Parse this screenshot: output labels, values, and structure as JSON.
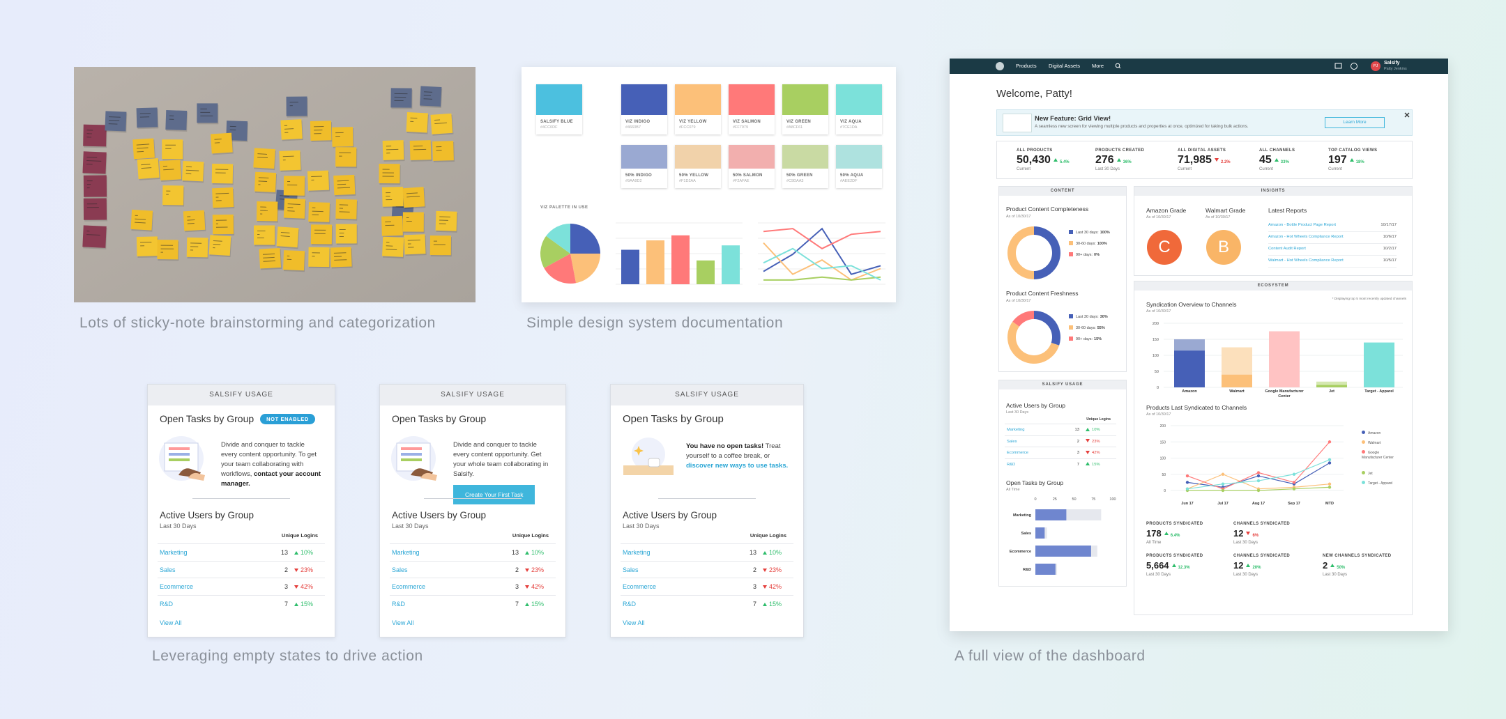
{
  "captions": [
    "Lots of sticky-note brainstorming and categorization",
    "Simple design system documentation",
    "Leveraging empty states to drive action",
    "A full view of the dashboard"
  ],
  "design_system": {
    "primary": [
      {
        "name": "SALSIFY BLUE",
        "hex": "#4CC0DF"
      }
    ],
    "palette": [
      {
        "name": "VIZ INDIGO",
        "hex": "#4660B7"
      },
      {
        "name": "VIZ YELLOW",
        "hex": "#FCC079"
      },
      {
        "name": "VIZ SALMON",
        "hex": "#FF7979"
      },
      {
        "name": "VIZ GREEN",
        "hex": "#A8CF61"
      },
      {
        "name": "VIZ AQUA",
        "hex": "#7CE1DA"
      },
      {
        "name": "50% INDIGO",
        "hex": "#9AA9D2"
      },
      {
        "name": "50% YELLOW",
        "hex": "#F1D2AA"
      },
      {
        "name": "50% SALMON",
        "hex": "#F2AFAE"
      },
      {
        "name": "50% GREEN",
        "hex": "#C9DAA3"
      },
      {
        "name": "50% AQUA",
        "hex": "#AEE2DF"
      }
    ],
    "palette_label": "VIZ PALETTE IN USE"
  },
  "empty_states": [
    {
      "header": "SALSIFY USAGE",
      "title": "Open Tasks by Group",
      "badge": "NOT ENABLED",
      "message": "Divide and conquer to tackle every content opportunity. To get your team collaborating with workflows, ",
      "message_link": "contact your account manager.",
      "users_title": "Active Users by Group",
      "users_period": "Last 30 Days",
      "users_column": "Unique Logins",
      "rows": [
        {
          "group": "Marketing",
          "logins": 13,
          "change": "10%",
          "trend": "up"
        },
        {
          "group": "Sales",
          "logins": 2,
          "change": "23%",
          "trend": "down"
        },
        {
          "group": "Ecommerce",
          "logins": 3,
          "change": "42%",
          "trend": "down"
        },
        {
          "group": "R&D",
          "logins": 7,
          "change": "15%",
          "trend": "up"
        }
      ],
      "view_all": "View All"
    },
    {
      "header": "SALSIFY USAGE",
      "title": "Open Tasks by Group",
      "message": "Divide and conquer to tackle every content opportunity. Get your whole team collaborating in Salsify.",
      "button": "Create Your First Task",
      "users_title": "Active Users by Group",
      "users_period": "Last 30 Days",
      "users_column": "Unique Logins",
      "rows": [
        {
          "group": "Marketing",
          "logins": 13,
          "change": "10%",
          "trend": "up"
        },
        {
          "group": "Sales",
          "logins": 2,
          "change": "23%",
          "trend": "down"
        },
        {
          "group": "Ecommerce",
          "logins": 3,
          "change": "42%",
          "trend": "down"
        },
        {
          "group": "R&D",
          "logins": 7,
          "change": "15%",
          "trend": "up"
        }
      ],
      "view_all": "View All"
    },
    {
      "header": "SALSIFY USAGE",
      "title": "Open Tasks by Group",
      "message_lead": "You have no open tasks!",
      "message": " Treat yourself to a coffee break, or ",
      "message_link": "discover new ways to use tasks.",
      "users_title": "Active Users by Group",
      "users_period": "Last 30 Days",
      "users_column": "Unique Logins",
      "rows": [
        {
          "group": "Marketing",
          "logins": 13,
          "change": "10%",
          "trend": "up"
        },
        {
          "group": "Sales",
          "logins": 2,
          "change": "23%",
          "trend": "down"
        },
        {
          "group": "Ecommerce",
          "logins": 3,
          "change": "42%",
          "trend": "down"
        },
        {
          "group": "R&D",
          "logins": 7,
          "change": "15%",
          "trend": "up"
        }
      ],
      "view_all": "View All"
    }
  ],
  "dashboard": {
    "nav": {
      "links": [
        "Products",
        "Digital Assets",
        "More"
      ],
      "user": "Salsify",
      "user_name": "Patty Jenkins",
      "initials": "PJ"
    },
    "welcome": "Welcome, Patty!",
    "banner": {
      "title": "New Feature: Grid View!",
      "text": "A seamless new screen for viewing multiple products and properties at once, optimized for taking bulk actions.",
      "button": "Learn More"
    },
    "stats": [
      {
        "label": "ALL PRODUCTS",
        "value": "50,430",
        "change": "5.4%",
        "trend": "up",
        "period": "Current"
      },
      {
        "label": "PRODUCTS CREATED",
        "value": "276",
        "change": "36%",
        "trend": "up",
        "period": "Last 30 Days"
      },
      {
        "label": "ALL DIGITAL ASSETS",
        "value": "71,985",
        "change": "2.2%",
        "trend": "down",
        "period": "Current"
      },
      {
        "label": "ALL CHANNELS",
        "value": "45",
        "change": "33%",
        "trend": "up",
        "period": "Current"
      },
      {
        "label": "TOP CATALOG VIEWS",
        "value": "197",
        "change": "18%",
        "trend": "up",
        "period": "Current"
      }
    ],
    "content": {
      "header": "CONTENT",
      "charts": [
        {
          "title": "Product Content Completeness",
          "date": "As of 10/30/17",
          "legend": [
            {
              "label": "Last 30 days:",
              "value": 100,
              "value_label": "100%",
              "color": "#4660B7"
            },
            {
              "label": "30-60 days:",
              "value": 100,
              "value_label": "100%",
              "color": "#FCC079"
            },
            {
              "label": "90+ days:",
              "value": 0,
              "value_label": "0%",
              "color": "#FF7979"
            }
          ]
        },
        {
          "title": "Product Content Freshness",
          "date": "As of 10/30/17",
          "legend": [
            {
              "label": "Last 30 days:",
              "value": 30,
              "value_label": "30%",
              "color": "#4660B7"
            },
            {
              "label": "30-60 days:",
              "value": 55,
              "value_label": "55%",
              "color": "#FCC079"
            },
            {
              "label": "90+ days:",
              "value": 15,
              "value_label": "15%",
              "color": "#FF7979"
            }
          ]
        }
      ]
    },
    "insights": {
      "header": "INSIGHTS",
      "grades": [
        {
          "title": "Amazon Grade",
          "date": "As of 10/30/17",
          "grade": "C",
          "color": "#F0693A"
        },
        {
          "title": "Walmart Grade",
          "date": "As of 10/30/17",
          "grade": "B",
          "color": "#F9B567"
        }
      ],
      "reports_title": "Latest Reports",
      "reports": [
        {
          "name": "Amazon - Bottle Product Page Report",
          "date": "10/17/17"
        },
        {
          "name": "Amazon - Hot Wheels Compliance Report",
          "date": "10/6/17"
        },
        {
          "name": "Content Audit Report",
          "date": "10/2/17"
        },
        {
          "name": "Walmart - Hot Wheels Compliance Report",
          "date": "10/5/17"
        }
      ]
    },
    "usage": {
      "header": "SALSIFY USAGE",
      "users_title": "Active Users by Group",
      "users_period": "Last 30 Days",
      "users_column": "Unique Logins",
      "rows": [
        {
          "group": "Marketing",
          "logins": 13,
          "change": "10%",
          "trend": "up"
        },
        {
          "group": "Sales",
          "logins": 2,
          "change": "23%",
          "trend": "down"
        },
        {
          "group": "Ecommerce",
          "logins": 3,
          "change": "42%",
          "trend": "down"
        },
        {
          "group": "R&D",
          "logins": 7,
          "change": "15%",
          "trend": "up"
        }
      ],
      "tasks_title": "Open Tasks by Group",
      "tasks_period": "All Time",
      "tasks_chart": {
        "type": "bar",
        "orientation": "horizontal",
        "categories": [
          "Marketing",
          "Sales",
          "Ecommerce",
          "R&D"
        ],
        "values": [
          40,
          12,
          72,
          26
        ],
        "totals": [
          85,
          15,
          80,
          28
        ],
        "color": "#6F86CF",
        "total_color": "#E6E8EE",
        "xlim": [
          0,
          100
        ],
        "xticks": [
          0,
          25,
          50,
          75,
          100
        ]
      }
    },
    "ecosystem": {
      "header": "ECOSYSTEM",
      "note": "* Displaying top 5 most recently updated channels",
      "bar_chart": {
        "type": "bar",
        "stacked": true,
        "title": "Syndication Overview to Channels",
        "subtitle": "As of 10/30/17",
        "categories": [
          "Amazon",
          "Walmart",
          "Google Manufacturer Center",
          "Jet",
          "Target - Apparel"
        ],
        "series": [
          {
            "colors": [
              "#4660B7",
              "#FCC079",
              "#FF7979",
              "#A8CF61",
              "#7CE1DA"
            ],
            "values": [
              115,
              40,
              0,
              8,
              140
            ]
          },
          {
            "colors": [
              "#9AA9D2",
              "#FCE0BC",
              "#FFC3C3",
              "#D5E8B0",
              "#BDEFEB"
            ],
            "values": [
              35,
              85,
              175,
              10,
              0
            ]
          }
        ],
        "ylim": [
          0,
          200
        ],
        "yticks": [
          0,
          50,
          100,
          150,
          200
        ],
        "grid": true
      },
      "line_chart": {
        "type": "line",
        "title": "Products Last Syndicated to Channels",
        "subtitle": "As of 10/30/17",
        "categories": [
          "Jun 17",
          "Jul 17",
          "Aug 17",
          "Sep 17",
          "MTD"
        ],
        "series": [
          {
            "name": "Amazon",
            "color": "#4660B7",
            "values": [
              25,
              10,
              45,
              20,
              85
            ]
          },
          {
            "name": "Walmart",
            "color": "#FCC079",
            "values": [
              5,
              50,
              5,
              10,
              20
            ]
          },
          {
            "name": "Google Manufacturer Center",
            "color": "#FF7979",
            "values": [
              45,
              5,
              55,
              25,
              150
            ]
          },
          {
            "name": "Jet",
            "color": "#A8CF61",
            "values": [
              0,
              0,
              0,
              5,
              10
            ]
          },
          {
            "name": "Target - Apparel",
            "color": "#7CE1DA",
            "values": [
              5,
              20,
              30,
              50,
              95
            ]
          }
        ],
        "ylim": [
          0,
          200
        ],
        "yticks": [
          0,
          50,
          100,
          150,
          200
        ],
        "grid": true,
        "legend": "right"
      },
      "stats": [
        {
          "label": "PRODUCTS SYNDICATED",
          "value": "178",
          "change": "6.4%",
          "trend": "up",
          "period": "All Time"
        },
        {
          "label": "CHANNELS SYNDICATED",
          "value": "12",
          "change": "6%",
          "trend": "down",
          "period": "Last 30 Days"
        },
        {
          "label": "PRODUCTS SYNDICATED",
          "value": "5,664",
          "change": "12.3%",
          "trend": "up",
          "period": "Last 30 Days"
        },
        {
          "label": "CHANNELS SYNDICATED",
          "value": "12",
          "change": "20%",
          "trend": "up",
          "period": "Last 30 Days"
        },
        {
          "label": "NEW CHANNELS SYNDICATED",
          "value": "2",
          "change": "50%",
          "trend": "up",
          "period": "Last 30 Days"
        }
      ]
    }
  }
}
